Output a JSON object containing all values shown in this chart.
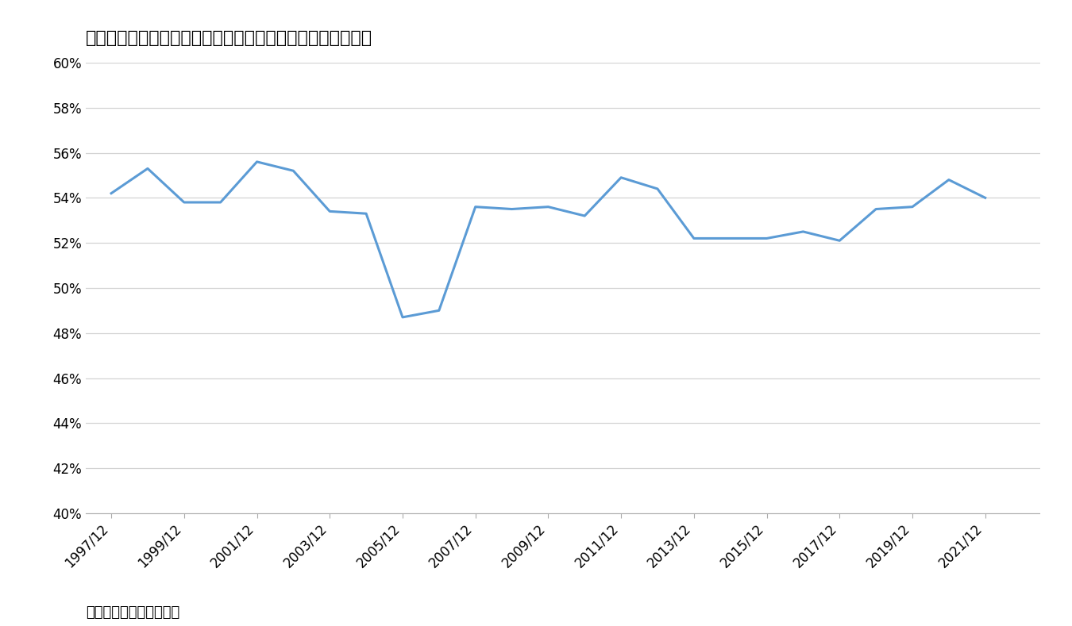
{
  "title": "図表２　家計の「現金・預金の金融資産残高に占める割合」",
  "footnote": "出所）日銀資金循環統計",
  "line_color": "#5b9bd5",
  "line_width": 2.2,
  "background_color": "#ffffff",
  "grid_color": "#d3d3d3",
  "xlabels": [
    "1997/12",
    "1999/12",
    "2001/12",
    "2003/12",
    "2005/12",
    "2007/12",
    "2009/12",
    "2011/12",
    "2013/12",
    "2015/12",
    "2017/12",
    "2019/12",
    "2021/12"
  ],
  "x_values": [
    1997,
    1998,
    1999,
    2000,
    2001,
    2002,
    2003,
    2004,
    2005,
    2006,
    2007,
    2008,
    2009,
    2010,
    2011,
    2012,
    2013,
    2014,
    2015,
    2016,
    2017,
    2018,
    2019,
    2020,
    2021
  ],
  "y_values": [
    54.2,
    55.3,
    53.8,
    53.8,
    55.6,
    55.2,
    53.4,
    53.3,
    48.7,
    49.0,
    53.6,
    53.5,
    53.6,
    53.2,
    54.9,
    54.4,
    52.2,
    52.2,
    52.2,
    52.5,
    52.1,
    53.5,
    53.6,
    54.8,
    54.0
  ],
  "ylim": [
    40,
    60
  ],
  "yticks": [
    40,
    42,
    44,
    46,
    48,
    50,
    52,
    54,
    56,
    58,
    60
  ],
  "title_fontsize": 16,
  "tick_fontsize": 12,
  "footnote_fontsize": 13
}
